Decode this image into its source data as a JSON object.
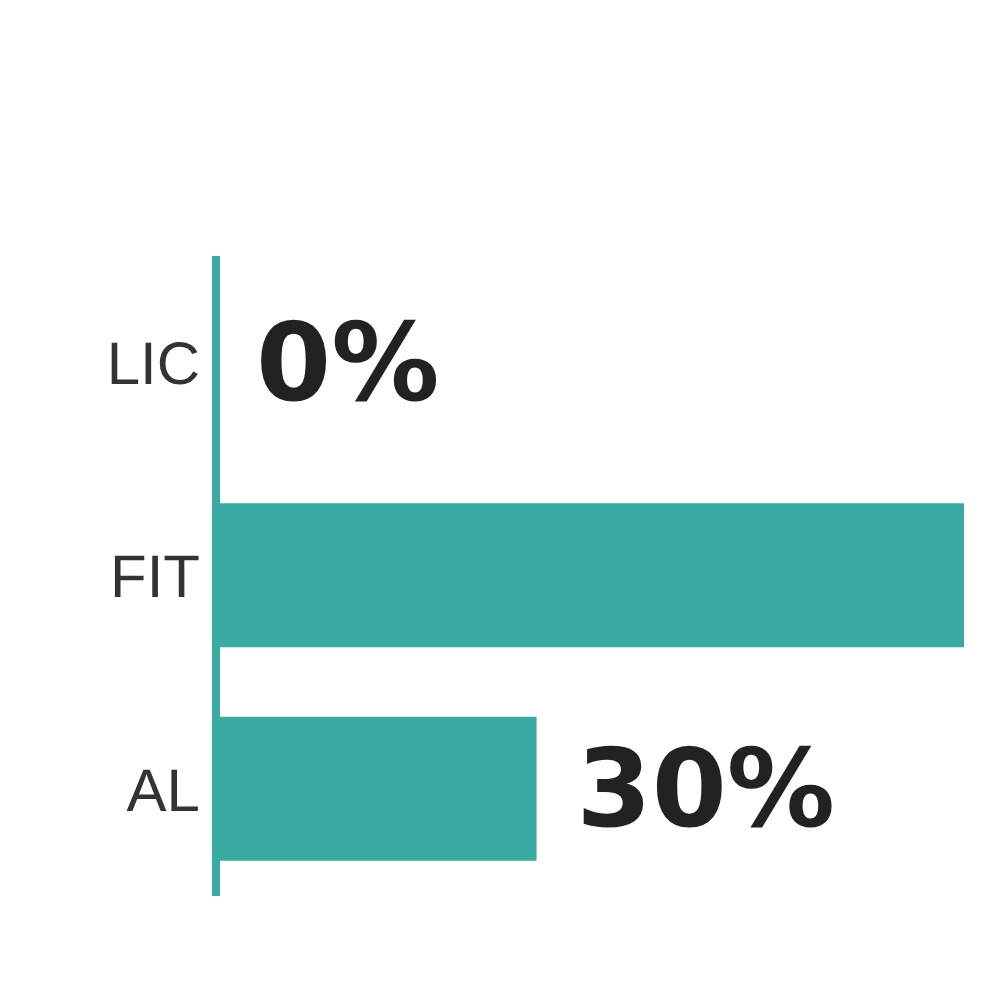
{
  "chart_data": {
    "type": "bar",
    "orientation": "horizontal",
    "categories": [
      "LIC",
      "FIT",
      "AL"
    ],
    "values": [
      0,
      70,
      30
    ],
    "value_labels": [
      "0%",
      null,
      "30%"
    ],
    "color": "#3aaba3"
  }
}
